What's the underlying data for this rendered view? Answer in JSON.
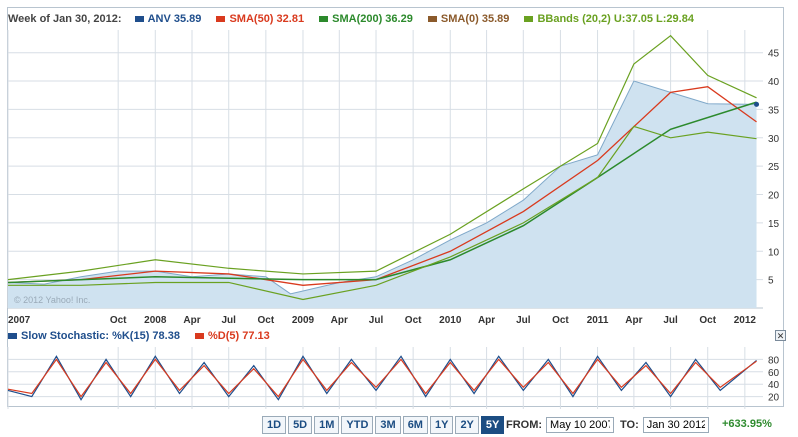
{
  "legend": {
    "week": "Week of Jan 30, 2012:",
    "items": [
      {
        "id": "anv",
        "label": "ANV 35.89",
        "color": "#1f4e8c"
      },
      {
        "id": "sma50",
        "label": "SMA(50) 32.81",
        "color": "#d93a1e"
      },
      {
        "id": "sma200",
        "label": "SMA(200) 36.29",
        "color": "#2c8a2c"
      },
      {
        "id": "sma0",
        "label": "SMA(0) 35.89",
        "color": "#8b5a2b"
      },
      {
        "id": "bbands",
        "label": "BBands (20,2) U:37.05 L:29.84",
        "color": "#6aa121"
      }
    ]
  },
  "watermark": "© 2012 Yahoo! Inc.",
  "stoch_legend": {
    "items": [
      {
        "id": "k",
        "label": "Slow Stochastic: %K(15) 78.38",
        "color": "#1f4e8c"
      },
      {
        "id": "d",
        "label": "%D(5) 77.13",
        "color": "#d93a1e"
      }
    ]
  },
  "close_icon": "close-icon",
  "controls": {
    "ranges": [
      "1D",
      "5D",
      "1M",
      "YTD",
      "3M",
      "6M",
      "1Y",
      "2Y",
      "5Y"
    ],
    "active": "5Y",
    "from_label": "FROM:",
    "from_value": "May 10 2007",
    "to_label": "TO:",
    "to_value": "Jan 30 2012",
    "change": "+633.95%"
  },
  "colors": {
    "area_fill": "#cfe2f0",
    "area_line": "#7fa8c9",
    "grid": "#d7dee5",
    "price": "#3a6f2a",
    "sma50": "#d93a1e",
    "sma200": "#2c8a2c",
    "bb_upper": "#6aa121",
    "bb_lower": "#6aa121",
    "stoch_k": "#1f4e8c",
    "stoch_d": "#d93a1e"
  },
  "chart_data": [
    {
      "type": "line",
      "title": "",
      "x_tick_labels": [
        "2007",
        "Oct",
        "2008",
        "Apr",
        "Jul",
        "Oct",
        "2009",
        "Apr",
        "Jul",
        "Oct",
        "2010",
        "Apr",
        "Jul",
        "Oct",
        "2011",
        "Apr",
        "Jul",
        "Oct",
        "2012"
      ],
      "x_tick_dates": [
        "2007-01-01",
        "2007-10-01",
        "2008-01-01",
        "2008-04-01",
        "2008-07-01",
        "2008-10-01",
        "2009-01-01",
        "2009-04-01",
        "2009-07-01",
        "2009-10-01",
        "2010-01-01",
        "2010-04-01",
        "2010-07-01",
        "2010-10-01",
        "2011-01-01",
        "2011-04-01",
        "2011-07-01",
        "2011-10-01",
        "2012-01-01"
      ],
      "y_ticks": [
        5,
        10,
        15,
        20,
        25,
        30,
        35,
        40,
        45
      ],
      "ylim": [
        0,
        49
      ],
      "grid": true,
      "series": [
        {
          "name": "ANV",
          "x": [
            "2007-01-01",
            "2007-04-01",
            "2007-07-01",
            "2007-10-01",
            "2008-01-01",
            "2008-04-01",
            "2008-07-01",
            "2008-10-01",
            "2008-12-01",
            "2009-01-01",
            "2009-04-01",
            "2009-07-01",
            "2009-10-01",
            "2010-01-01",
            "2010-04-01",
            "2010-07-01",
            "2010-10-01",
            "2011-01-01",
            "2011-04-01",
            "2011-07-01",
            "2011-10-01",
            "2012-01-30"
          ],
          "values": [
            4.5,
            4.2,
            5.5,
            6.5,
            6.5,
            5.5,
            6,
            5.5,
            2.5,
            3,
            4.5,
            5.5,
            8.5,
            12,
            15,
            19,
            25,
            27,
            40,
            38,
            36,
            35.89
          ]
        },
        {
          "name": "SMA(50)",
          "x": [
            "2007-01-01",
            "2007-07-01",
            "2008-01-01",
            "2008-07-01",
            "2009-01-01",
            "2009-07-01",
            "2010-01-01",
            "2010-07-01",
            "2011-01-01",
            "2011-07-01",
            "2011-10-01",
            "2012-01-30"
          ],
          "values": [
            4.5,
            5,
            6.5,
            6,
            4,
            5,
            10,
            17,
            26,
            38,
            39,
            32.81
          ]
        },
        {
          "name": "SMA(200)",
          "x": [
            "2007-01-01",
            "2008-01-01",
            "2009-01-01",
            "2009-07-01",
            "2010-01-01",
            "2010-07-01",
            "2011-01-01",
            "2011-07-01",
            "2012-01-30"
          ],
          "values": [
            4.5,
            5.5,
            5,
            5,
            8.5,
            14.5,
            23,
            31.5,
            36.29
          ]
        },
        {
          "name": "BBands Upper",
          "x": [
            "2007-01-01",
            "2007-07-01",
            "2008-01-01",
            "2008-07-01",
            "2009-01-01",
            "2009-07-01",
            "2010-01-01",
            "2010-07-01",
            "2011-01-01",
            "2011-04-01",
            "2011-07-01",
            "2011-10-01",
            "2012-01-30"
          ],
          "values": [
            5,
            6.5,
            8.5,
            7,
            6,
            6.5,
            13,
            21,
            29,
            43,
            48,
            41,
            37.05
          ]
        },
        {
          "name": "BBands Lower",
          "x": [
            "2007-01-01",
            "2007-07-01",
            "2008-01-01",
            "2008-07-01",
            "2009-01-01",
            "2009-07-01",
            "2010-01-01",
            "2010-07-01",
            "2011-01-01",
            "2011-04-01",
            "2011-07-01",
            "2011-10-01",
            "2012-01-30"
          ],
          "values": [
            4,
            4,
            4.5,
            4.5,
            1.5,
            4,
            9,
            15,
            23,
            32,
            30,
            31,
            29.84
          ]
        }
      ]
    },
    {
      "type": "line",
      "title": "",
      "y_ticks": [
        20,
        40,
        60,
        80
      ],
      "ylim": [
        0,
        100
      ],
      "series": [
        {
          "name": "%K(15)",
          "x": [
            "2007-01-01",
            "2007-03-01",
            "2007-05-01",
            "2007-07-01",
            "2007-09-01",
            "2007-11-01",
            "2008-01-01",
            "2008-03-01",
            "2008-05-01",
            "2008-07-01",
            "2008-09-01",
            "2008-11-01",
            "2009-01-01",
            "2009-03-01",
            "2009-05-01",
            "2009-07-01",
            "2009-09-01",
            "2009-11-01",
            "2010-01-01",
            "2010-03-01",
            "2010-05-01",
            "2010-07-01",
            "2010-09-01",
            "2010-11-01",
            "2011-01-01",
            "2011-03-01",
            "2011-05-01",
            "2011-07-01",
            "2011-09-01",
            "2011-11-01",
            "2012-01-30"
          ],
          "values": [
            30,
            20,
            85,
            15,
            80,
            20,
            85,
            25,
            75,
            20,
            70,
            15,
            85,
            25,
            80,
            30,
            85,
            20,
            80,
            25,
            85,
            30,
            80,
            20,
            85,
            30,
            75,
            20,
            80,
            30,
            78.38
          ]
        },
        {
          "name": "%D(5)",
          "x": [
            "2007-01-01",
            "2007-03-01",
            "2007-05-01",
            "2007-07-01",
            "2007-09-01",
            "2007-11-01",
            "2008-01-01",
            "2008-03-01",
            "2008-05-01",
            "2008-07-01",
            "2008-09-01",
            "2008-11-01",
            "2009-01-01",
            "2009-03-01",
            "2009-05-01",
            "2009-07-01",
            "2009-09-01",
            "2009-11-01",
            "2010-01-01",
            "2010-03-01",
            "2010-05-01",
            "2010-07-01",
            "2010-09-01",
            "2010-11-01",
            "2011-01-01",
            "2011-03-01",
            "2011-05-01",
            "2011-07-01",
            "2011-09-01",
            "2011-11-01",
            "2012-01-30"
          ],
          "values": [
            32,
            25,
            80,
            20,
            75,
            25,
            80,
            30,
            70,
            25,
            65,
            20,
            80,
            30,
            75,
            35,
            80,
            25,
            75,
            30,
            80,
            35,
            75,
            25,
            80,
            35,
            70,
            25,
            75,
            35,
            77.13
          ]
        }
      ]
    }
  ]
}
